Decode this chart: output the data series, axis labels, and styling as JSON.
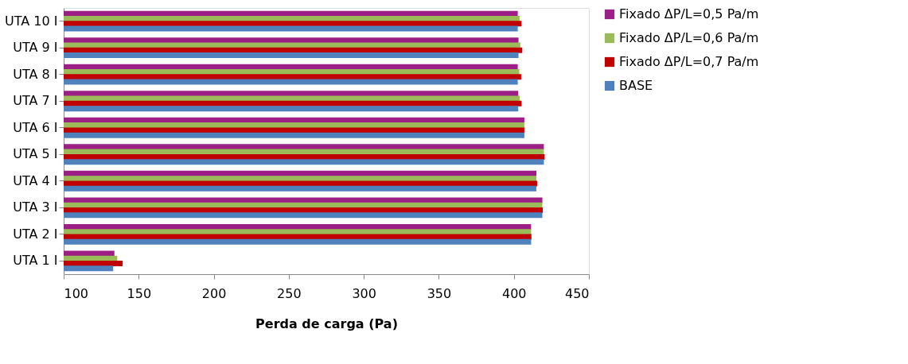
{
  "chart_data": {
    "type": "bar",
    "orientation": "horizontal",
    "xlabel": "Perda de carga (Pa)",
    "categories": [
      "UTA 10 I",
      "UTA 9 I",
      "UTA 8 I",
      "UTA 7 I",
      "UTA 6 I",
      "UTA 5 I",
      "UTA 4 I",
      "UTA 3 I",
      "UTA 2 I",
      "UTA 1 I"
    ],
    "series": [
      {
        "name": "Fixado ΔP/L=0,5 Pa/m",
        "color": "#9b1f84",
        "values": [
          402.6,
          403.1,
          402.6,
          402.9,
          407,
          420,
          415,
          419,
          411.5,
          133.8
        ]
      },
      {
        "name": "Fixado ΔP/L=0,6 Pa/m",
        "color": "#9bbb59",
        "values": [
          403.8,
          404.3,
          403.6,
          403.9,
          407,
          420,
          415,
          419,
          411.5,
          135.7
        ]
      },
      {
        "name": "Fixado ΔP/L=0,7 Pa/m",
        "color": "#c00000",
        "values": [
          405.1,
          405.6,
          404.9,
          405.2,
          407,
          420.5,
          415.5,
          419.3,
          411.7,
          139.3
        ]
      },
      {
        "name": "BASE",
        "color": "#4f81bd",
        "values": [
          402.6,
          403.1,
          402.6,
          402.9,
          407,
          420,
          415,
          419,
          411.5,
          133
        ]
      }
    ],
    "xlim": [
      100,
      450
    ],
    "xticks": [
      100,
      150,
      200,
      250,
      300,
      350,
      400,
      450
    ],
    "grid": false,
    "legend": "right"
  }
}
